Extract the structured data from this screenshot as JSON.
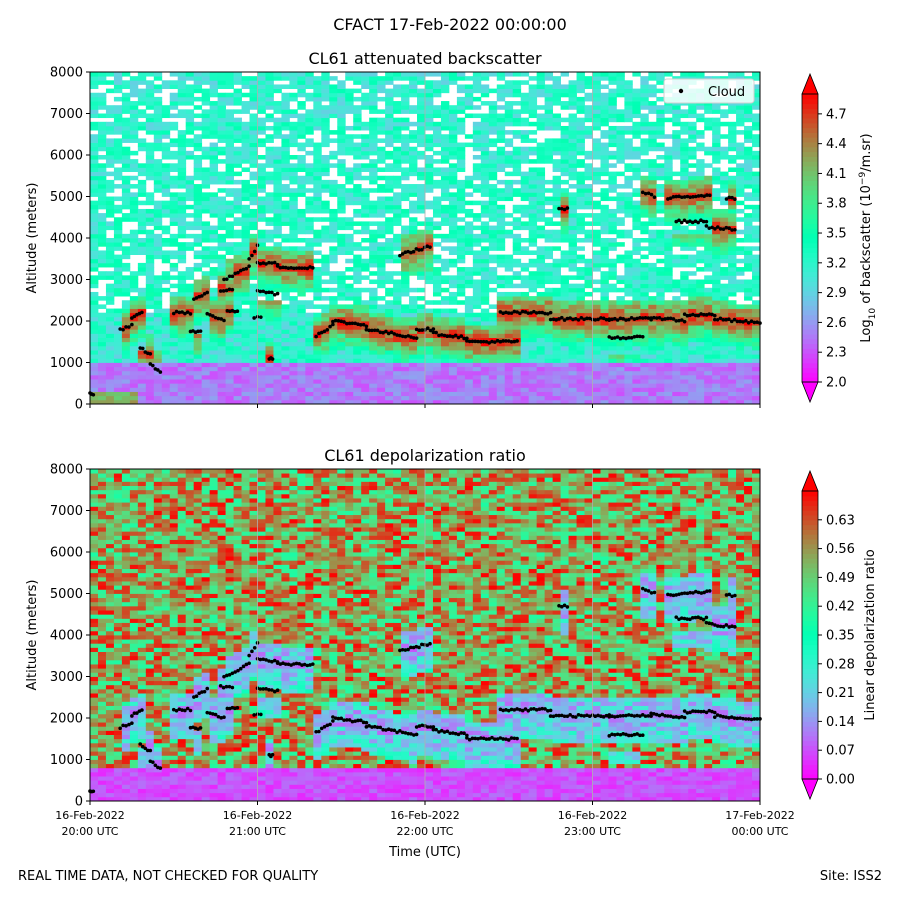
{
  "figure": {
    "title": "CFACT 17-Feb-2022 00:00:00",
    "footer_left": "REAL TIME DATA, NOT CHECKED FOR QUALITY",
    "footer_right": "Site: ISS2"
  },
  "chart_data": [
    {
      "type": "heatmap",
      "title": "CL61 attenuated backscatter",
      "xlabel": "Time (UTC)",
      "ylabel": "Altitude (meters)",
      "xlim_hours": [
        0,
        4
      ],
      "x_tick_labels": [
        {
          "line1": "16-Feb-2022",
          "line2": "20:00 UTC"
        },
        {
          "line1": "16-Feb-2022",
          "line2": "21:00 UTC"
        },
        {
          "line1": "16-Feb-2022",
          "line2": "22:00 UTC"
        },
        {
          "line1": "16-Feb-2022",
          "line2": "23:00 UTC"
        },
        {
          "line1": "17-Feb-2022",
          "line2": "00:00 UTC"
        }
      ],
      "x_tick_labels_shown": false,
      "ylim": [
        0,
        8000
      ],
      "y_ticks": [
        0,
        1000,
        2000,
        3000,
        4000,
        5000,
        6000,
        7000,
        8000
      ],
      "legend": {
        "label": "Cloud",
        "position": "top-right"
      },
      "colorbar": {
        "label_prefix": "Log",
        "label_sub": "10",
        "label_mid": " of backscatter (10",
        "label_sup": "−9",
        "label_suffix": "/m.sr)",
        "range": [
          2.0,
          4.9
        ],
        "ticks": [
          "2.0",
          "2.3",
          "2.6",
          "2.9",
          "3.2",
          "3.5",
          "3.8",
          "4.1",
          "4.4",
          "4.7"
        ],
        "tick_values": [
          2.0,
          2.3,
          2.6,
          2.9,
          3.2,
          3.5,
          3.8,
          4.1,
          4.4,
          4.7
        ],
        "colormap": "rainbow"
      }
    },
    {
      "type": "heatmap",
      "title": "CL61 depolarization ratio",
      "xlabel": "Time (UTC)",
      "ylabel": "Altitude (meters)",
      "xlim_hours": [
        0,
        4
      ],
      "x_tick_labels": [
        {
          "line1": "16-Feb-2022",
          "line2": "20:00 UTC"
        },
        {
          "line1": "16-Feb-2022",
          "line2": "21:00 UTC"
        },
        {
          "line1": "16-Feb-2022",
          "line2": "22:00 UTC"
        },
        {
          "line1": "16-Feb-2022",
          "line2": "23:00 UTC"
        },
        {
          "line1": "17-Feb-2022",
          "line2": "00:00 UTC"
        }
      ],
      "x_tick_labels_shown": true,
      "ylim": [
        0,
        8000
      ],
      "y_ticks": [
        0,
        1000,
        2000,
        3000,
        4000,
        5000,
        6000,
        7000,
        8000
      ],
      "colorbar": {
        "label": "Linear depolarization ratio",
        "range": [
          0.0,
          0.7
        ],
        "ticks": [
          "0.00",
          "0.07",
          "0.14",
          "0.21",
          "0.28",
          "0.35",
          "0.42",
          "0.49",
          "0.56",
          "0.63"
        ],
        "tick_values": [
          0.0,
          0.07,
          0.14,
          0.21,
          0.28,
          0.35,
          0.42,
          0.49,
          0.56,
          0.63
        ],
        "colormap": "rainbow"
      }
    }
  ],
  "cloud_base_segments": [
    {
      "t0": 0.0,
      "t1": 0.02,
      "alt": [
        250,
        250
      ]
    },
    {
      "t0": 0.18,
      "t1": 0.25,
      "alt": [
        1780,
        1900
      ]
    },
    {
      "t0": 0.25,
      "t1": 0.31,
      "alt": [
        2050,
        2200
      ]
    },
    {
      "t0": 0.3,
      "t1": 0.36,
      "alt": [
        1350,
        1200
      ]
    },
    {
      "t0": 0.36,
      "t1": 0.42,
      "alt": [
        950,
        780
      ]
    },
    {
      "t0": 0.5,
      "t1": 0.6,
      "alt": [
        2200,
        2200
      ]
    },
    {
      "t0": 0.62,
      "t1": 0.7,
      "alt": [
        2500,
        2700
      ]
    },
    {
      "t0": 0.7,
      "t1": 0.8,
      "alt": [
        2150,
        2000
      ]
    },
    {
      "t0": 0.6,
      "t1": 0.66,
      "alt": [
        1750,
        1750
      ]
    },
    {
      "t0": 0.82,
      "t1": 0.88,
      "alt": [
        2250,
        2250
      ]
    },
    {
      "t0": 0.78,
      "t1": 0.85,
      "alt": [
        2750,
        2750
      ]
    },
    {
      "t0": 0.8,
      "t1": 0.95,
      "alt": [
        3000,
        3300
      ]
    },
    {
      "t0": 0.95,
      "t1": 1.0,
      "alt": [
        3500,
        3800
      ]
    },
    {
      "t0": 1.0,
      "t1": 1.12,
      "alt": [
        3400,
        3380
      ]
    },
    {
      "t0": 1.12,
      "t1": 1.33,
      "alt": [
        3300,
        3280
      ]
    },
    {
      "t0": 1.0,
      "t1": 1.12,
      "alt": [
        2730,
        2650
      ]
    },
    {
      "t0": 0.98,
      "t1": 1.02,
      "alt": [
        2100,
        2100
      ]
    },
    {
      "t0": 1.07,
      "t1": 1.09,
      "alt": [
        1100,
        1100
      ]
    },
    {
      "t0": 1.35,
      "t1": 1.45,
      "alt": [
        1650,
        1900
      ]
    },
    {
      "t0": 1.45,
      "t1": 1.65,
      "alt": [
        2000,
        1900
      ]
    },
    {
      "t0": 1.65,
      "t1": 1.95,
      "alt": [
        1800,
        1600
      ]
    },
    {
      "t0": 1.95,
      "t1": 2.05,
      "alt": [
        1800,
        1800
      ]
    },
    {
      "t0": 2.05,
      "t1": 2.25,
      "alt": [
        1700,
        1600
      ]
    },
    {
      "t0": 2.25,
      "t1": 2.55,
      "alt": [
        1500,
        1500
      ]
    },
    {
      "t0": 2.45,
      "t1": 2.75,
      "alt": [
        2200,
        2200
      ]
    },
    {
      "t0": 2.75,
      "t1": 3.1,
      "alt": [
        2050,
        2050
      ]
    },
    {
      "t0": 3.1,
      "t1": 3.35,
      "alt": [
        2050,
        2050
      ]
    },
    {
      "t0": 3.1,
      "t1": 3.3,
      "alt": [
        1600,
        1600
      ]
    },
    {
      "t0": 3.35,
      "t1": 3.55,
      "alt": [
        2100,
        2000
      ]
    },
    {
      "t0": 3.55,
      "t1": 3.73,
      "alt": [
        2150,
        2150
      ]
    },
    {
      "t0": 3.73,
      "t1": 4.0,
      "alt": [
        2050,
        1950
      ]
    },
    {
      "t0": 1.85,
      "t1": 2.03,
      "alt": [
        3600,
        3800
      ]
    },
    {
      "t0": 2.8,
      "t1": 2.85,
      "alt": [
        4700,
        4700
      ]
    },
    {
      "t0": 3.3,
      "t1": 3.37,
      "alt": [
        5100,
        5000
      ]
    },
    {
      "t0": 3.45,
      "t1": 3.7,
      "alt": [
        4950,
        5050
      ]
    },
    {
      "t0": 3.5,
      "t1": 3.68,
      "alt": [
        4400,
        4400
      ]
    },
    {
      "t0": 3.68,
      "t1": 3.85,
      "alt": [
        4270,
        4200
      ]
    },
    {
      "t0": 3.8,
      "t1": 3.85,
      "alt": [
        4950,
        4950
      ]
    }
  ]
}
